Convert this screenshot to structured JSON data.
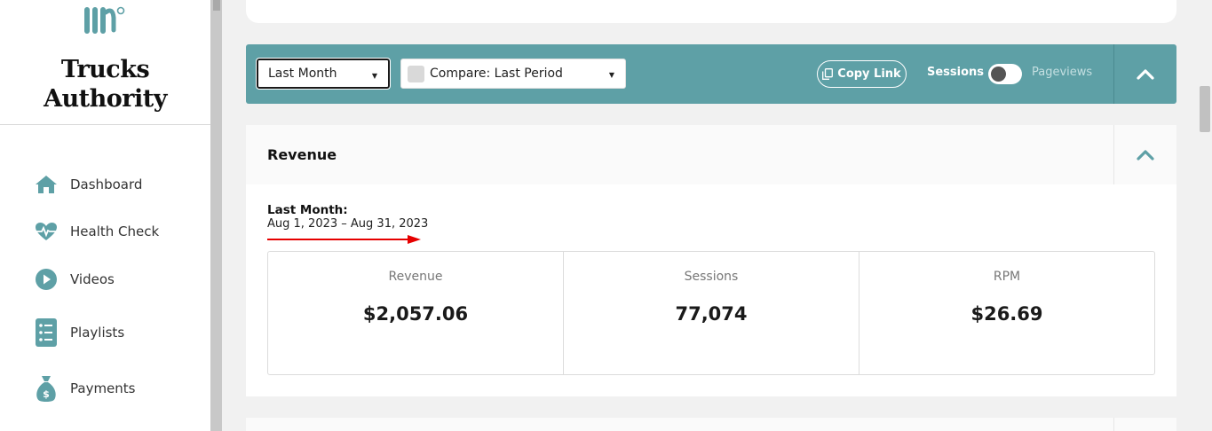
{
  "brand": {
    "name": "Trucks Authority"
  },
  "sidebar": {
    "items": [
      {
        "label": "Dashboard",
        "icon": "home-icon"
      },
      {
        "label": "Health Check",
        "icon": "heartbeat-icon"
      },
      {
        "label": "Videos",
        "icon": "play-circle-icon"
      },
      {
        "label": "Playlists",
        "icon": "checklist-icon"
      },
      {
        "label": "Payments",
        "icon": "money-bag-icon"
      }
    ]
  },
  "filters": {
    "period_value": "Last Month",
    "compare_value": "Compare: Last Period",
    "copy_link_label": "Copy Link",
    "toggle_left_label": "Sessions",
    "toggle_right_label": "Pageviews"
  },
  "revenue": {
    "title": "Revenue",
    "range_label": "Last Month:",
    "range_dates": "Aug 1, 2023 – Aug 31, 2023",
    "stats": [
      {
        "label": "Revenue",
        "value": "$2,057.06"
      },
      {
        "label": "Sessions",
        "value": "77,074"
      },
      {
        "label": "RPM",
        "value": "$26.69"
      }
    ]
  },
  "colors": {
    "accent": "#5ea0a6",
    "annotation_arrow": "#e60000"
  }
}
